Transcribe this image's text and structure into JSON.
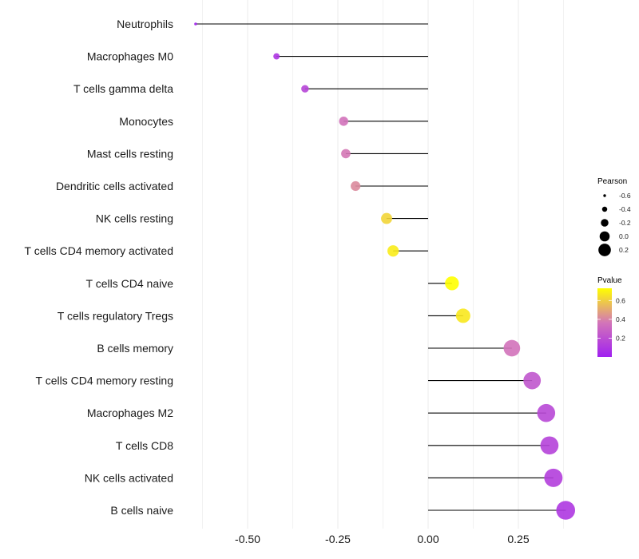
{
  "chart_data": {
    "type": "lollipop",
    "title": "",
    "xlabel": "",
    "ylabel": "",
    "xlim": [
      -0.68,
      0.42
    ],
    "x_ticks": [
      -0.5,
      -0.25,
      0.0,
      0.25
    ],
    "x_tick_labels": [
      "-0.50",
      "-0.25",
      "0.00",
      "0.25"
    ],
    "grid": true,
    "categories": [
      "Neutrophils",
      "Macrophages M0",
      "T cells gamma delta",
      "Monocytes",
      "Mast cells resting",
      "Dendritic cells activated",
      "NK cells resting",
      "T cells CD4 memory activated",
      "T cells CD4 naive",
      "T cells regulatory  Tregs",
      "B cells memory",
      "T cells CD4 memory resting",
      "Macrophages M2",
      "T cells CD8",
      "NK cells activated",
      "B cells naive"
    ],
    "pearson": [
      -0.644,
      -0.42,
      -0.341,
      -0.234,
      -0.228,
      -0.201,
      -0.115,
      -0.097,
      0.066,
      0.097,
      0.232,
      0.288,
      0.327,
      0.336,
      0.347,
      0.381
    ],
    "pvalue": [
      0.01,
      0.09,
      0.16,
      0.35,
      0.37,
      0.42,
      0.62,
      0.68,
      0.79,
      0.67,
      0.35,
      0.23,
      0.17,
      0.15,
      0.13,
      0.1
    ],
    "legend_size": {
      "title": "Pearson",
      "values": [
        -0.6,
        -0.4,
        -0.2,
        0.0,
        0.2
      ],
      "labels": [
        "-0.6",
        "-0.4",
        "-0.2",
        "0.0",
        "0.2"
      ]
    },
    "legend_color": {
      "title": "Pvalue",
      "range": [
        0.0,
        0.73
      ],
      "ticks": [
        0.2,
        0.4,
        0.6
      ],
      "tick_labels": [
        "0.2",
        "0.4",
        "0.6"
      ],
      "low_color": "#a020f0",
      "mid_color": "#d375b8",
      "high_color": "#ffff00"
    },
    "legend_position": "right"
  }
}
